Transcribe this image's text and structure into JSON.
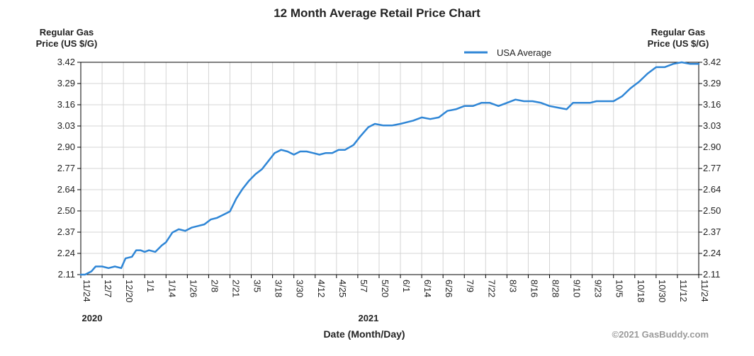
{
  "chart_data": {
    "type": "line",
    "title": "12 Month Average Retail Price Chart",
    "ylabel_left": [
      "Regular Gas",
      "Price (US $/G)"
    ],
    "ylabel_right": [
      "Regular Gas",
      "Price (US $/G)"
    ],
    "xlabel": "Date (Month/Day)",
    "copyright": "©2021 GasBuddy.com",
    "legend": "USA Average",
    "colors": {
      "series": "#2f86d6",
      "grid": "#d4d4d4",
      "axis": "#000000"
    },
    "ylim": [
      2.11,
      3.42
    ],
    "y_ticks": [
      "2.11",
      "2.24",
      "2.37",
      "2.50",
      "2.64",
      "2.77",
      "2.90",
      "3.03",
      "3.16",
      "3.29",
      "3.42"
    ],
    "x_ticks": [
      "11/24",
      "12/7",
      "12/20",
      "1/1",
      "1/14",
      "1/26",
      "2/8",
      "2/21",
      "3/5",
      "3/18",
      "3/30",
      "4/12",
      "4/25",
      "5/7",
      "5/20",
      "6/1",
      "6/14",
      "6/26",
      "7/9",
      "7/22",
      "8/3",
      "8/16",
      "8/28",
      "9/10",
      "9/23",
      "10/5",
      "10/18",
      "10/30",
      "11/12",
      "11/24"
    ],
    "years": [
      {
        "label": "2020",
        "tick_index": 0
      },
      {
        "label": "2021",
        "tick_index": 13.5
      }
    ],
    "series": [
      {
        "name": "USA Average",
        "points": [
          [
            0.0,
            2.11
          ],
          [
            0.2,
            2.11
          ],
          [
            0.5,
            2.13
          ],
          [
            0.7,
            2.16
          ],
          [
            1.0,
            2.16
          ],
          [
            1.3,
            2.15
          ],
          [
            1.6,
            2.16
          ],
          [
            1.9,
            2.15
          ],
          [
            2.1,
            2.21
          ],
          [
            2.4,
            2.22
          ],
          [
            2.6,
            2.26
          ],
          [
            2.8,
            2.26
          ],
          [
            3.0,
            2.25
          ],
          [
            3.2,
            2.26
          ],
          [
            3.5,
            2.25
          ],
          [
            3.8,
            2.29
          ],
          [
            4.0,
            2.31
          ],
          [
            4.3,
            2.37
          ],
          [
            4.6,
            2.39
          ],
          [
            4.9,
            2.38
          ],
          [
            5.2,
            2.4
          ],
          [
            5.5,
            2.41
          ],
          [
            5.8,
            2.42
          ],
          [
            6.1,
            2.45
          ],
          [
            6.4,
            2.46
          ],
          [
            6.7,
            2.48
          ],
          [
            7.0,
            2.5
          ],
          [
            7.3,
            2.58
          ],
          [
            7.6,
            2.64
          ],
          [
            7.9,
            2.69
          ],
          [
            8.2,
            2.73
          ],
          [
            8.5,
            2.76
          ],
          [
            8.8,
            2.81
          ],
          [
            9.1,
            2.86
          ],
          [
            9.4,
            2.88
          ],
          [
            9.7,
            2.87
          ],
          [
            10.0,
            2.85
          ],
          [
            10.3,
            2.87
          ],
          [
            10.6,
            2.87
          ],
          [
            10.9,
            2.86
          ],
          [
            11.2,
            2.85
          ],
          [
            11.5,
            2.86
          ],
          [
            11.8,
            2.86
          ],
          [
            12.1,
            2.88
          ],
          [
            12.4,
            2.88
          ],
          [
            12.8,
            2.91
          ],
          [
            13.1,
            2.96
          ],
          [
            13.5,
            3.02
          ],
          [
            13.8,
            3.04
          ],
          [
            14.2,
            3.03
          ],
          [
            14.6,
            3.03
          ],
          [
            15.0,
            3.04
          ],
          [
            15.3,
            3.05
          ],
          [
            15.6,
            3.06
          ],
          [
            16.0,
            3.08
          ],
          [
            16.4,
            3.07
          ],
          [
            16.8,
            3.08
          ],
          [
            17.2,
            3.12
          ],
          [
            17.6,
            3.13
          ],
          [
            18.0,
            3.15
          ],
          [
            18.4,
            3.15
          ],
          [
            18.8,
            3.17
          ],
          [
            19.2,
            3.17
          ],
          [
            19.6,
            3.15
          ],
          [
            20.0,
            3.17
          ],
          [
            20.4,
            3.19
          ],
          [
            20.8,
            3.18
          ],
          [
            21.2,
            3.18
          ],
          [
            21.6,
            3.17
          ],
          [
            22.0,
            3.15
          ],
          [
            22.4,
            3.14
          ],
          [
            22.8,
            3.13
          ],
          [
            23.1,
            3.17
          ],
          [
            23.5,
            3.17
          ],
          [
            23.9,
            3.17
          ],
          [
            24.2,
            3.18
          ],
          [
            24.6,
            3.18
          ],
          [
            25.0,
            3.18
          ],
          [
            25.4,
            3.21
          ],
          [
            25.8,
            3.26
          ],
          [
            26.2,
            3.3
          ],
          [
            26.6,
            3.35
          ],
          [
            27.0,
            3.39
          ],
          [
            27.4,
            3.39
          ],
          [
            27.8,
            3.41
          ],
          [
            28.2,
            3.42
          ],
          [
            28.6,
            3.41
          ],
          [
            29.0,
            3.41
          ]
        ]
      }
    ]
  }
}
